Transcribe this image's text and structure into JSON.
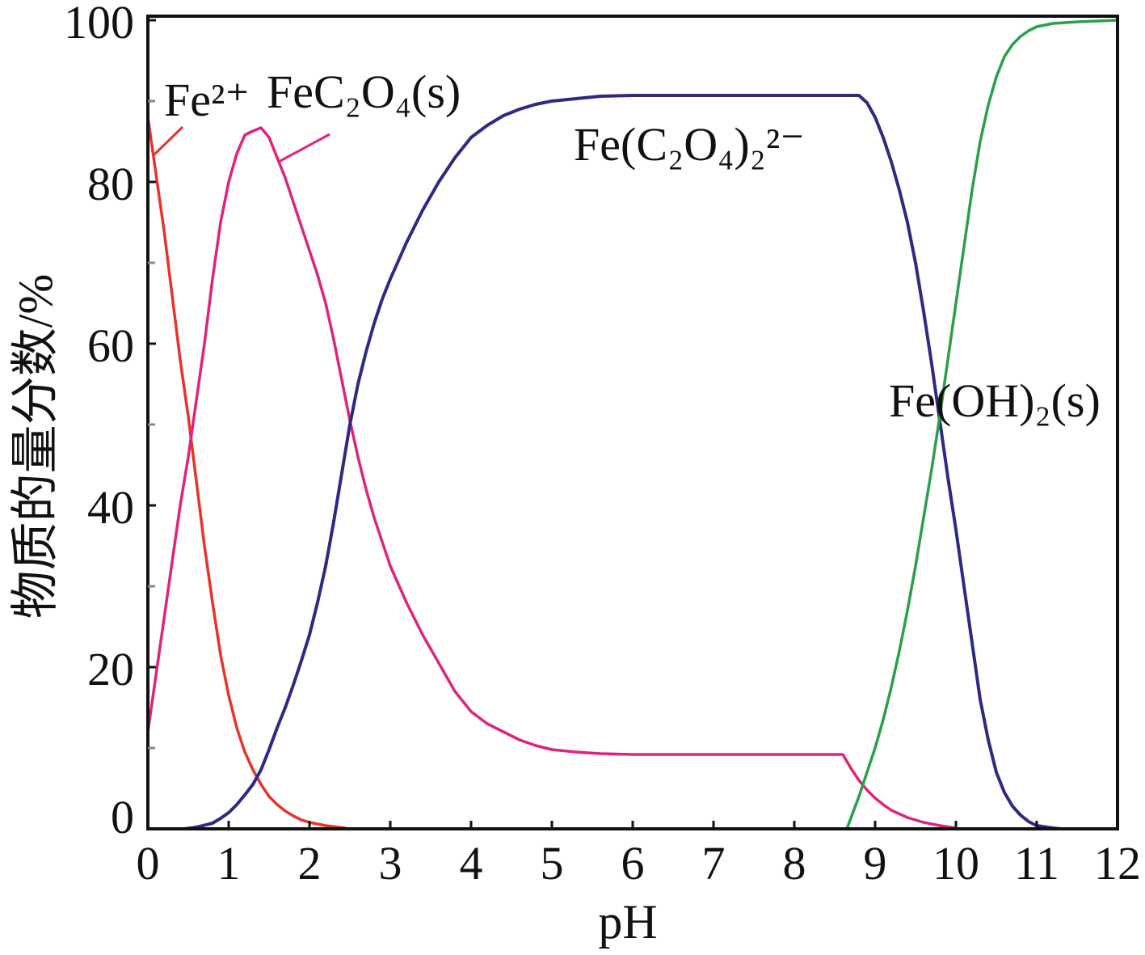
{
  "chart_data": {
    "type": "line",
    "title": "",
    "xlabel": "pH",
    "ylabel": "物质的量分数/%",
    "xlim": [
      0,
      12
    ],
    "ylim": [
      0,
      100
    ],
    "x_ticks": [
      0,
      1,
      2,
      3,
      4,
      5,
      6,
      7,
      8,
      9,
      10,
      11,
      12
    ],
    "y_ticks": [
      0,
      20,
      40,
      60,
      80,
      100
    ],
    "grid": false,
    "legend": "inline labels",
    "series": [
      {
        "name": "Fe²⁺",
        "color": "#e8332a",
        "points": [
          [
            0,
            88
          ],
          [
            0.1,
            81
          ],
          [
            0.2,
            74
          ],
          [
            0.3,
            66
          ],
          [
            0.4,
            58
          ],
          [
            0.5,
            51
          ],
          [
            0.6,
            43
          ],
          [
            0.7,
            35
          ],
          [
            0.8,
            28
          ],
          [
            0.9,
            21.5
          ],
          [
            1.0,
            16.5
          ],
          [
            1.1,
            12.5
          ],
          [
            1.2,
            9.5
          ],
          [
            1.3,
            7.3
          ],
          [
            1.4,
            5.5
          ],
          [
            1.5,
            4
          ],
          [
            1.6,
            3
          ],
          [
            1.7,
            2.2
          ],
          [
            1.8,
            1.6
          ],
          [
            1.9,
            1.1
          ],
          [
            2.0,
            0.8
          ],
          [
            2.2,
            0.4
          ],
          [
            2.4,
            0.15
          ],
          [
            2.5,
            0
          ]
        ]
      },
      {
        "name": "FeC₂O₄(s)",
        "color": "#e0237c",
        "points": [
          [
            0,
            12
          ],
          [
            0.1,
            19
          ],
          [
            0.2,
            26
          ],
          [
            0.3,
            33
          ],
          [
            0.4,
            40
          ],
          [
            0.5,
            46
          ],
          [
            0.6,
            53
          ],
          [
            0.7,
            60
          ],
          [
            0.8,
            68
          ],
          [
            0.9,
            75
          ],
          [
            1.0,
            80
          ],
          [
            1.1,
            83.5
          ],
          [
            1.2,
            85.8
          ],
          [
            1.3,
            86.3
          ],
          [
            1.4,
            86.7
          ],
          [
            1.5,
            85.5
          ],
          [
            1.6,
            83
          ],
          [
            1.7,
            80.5
          ],
          [
            1.8,
            77.5
          ],
          [
            1.9,
            74.5
          ],
          [
            2.0,
            71.5
          ],
          [
            2.1,
            68.5
          ],
          [
            2.2,
            65
          ],
          [
            2.3,
            60.5
          ],
          [
            2.4,
            55.5
          ],
          [
            2.5,
            50.5
          ],
          [
            2.6,
            46
          ],
          [
            2.7,
            42
          ],
          [
            2.8,
            38.5
          ],
          [
            2.9,
            35.5
          ],
          [
            3.0,
            32.5
          ],
          [
            3.2,
            28
          ],
          [
            3.4,
            24
          ],
          [
            3.6,
            20.5
          ],
          [
            3.8,
            17
          ],
          [
            4.0,
            14.5
          ],
          [
            4.2,
            13
          ],
          [
            4.4,
            12
          ],
          [
            4.6,
            11
          ],
          [
            4.8,
            10.3
          ],
          [
            5.0,
            9.8
          ],
          [
            5.3,
            9.5
          ],
          [
            5.6,
            9.3
          ],
          [
            6.0,
            9.2
          ],
          [
            7.0,
            9.2
          ],
          [
            8.0,
            9.2
          ],
          [
            8.6,
            9.2
          ],
          [
            8.7,
            7.5
          ],
          [
            8.8,
            6
          ],
          [
            8.9,
            4.8
          ],
          [
            9.0,
            3.8
          ],
          [
            9.1,
            3
          ],
          [
            9.2,
            2.3
          ],
          [
            9.4,
            1.4
          ],
          [
            9.6,
            0.8
          ],
          [
            9.8,
            0.4
          ],
          [
            10.0,
            0.1
          ]
        ]
      },
      {
        "name": "Fe(C₂O₄)₂²⁻",
        "color": "#2e2a84",
        "points": [
          [
            0.45,
            0
          ],
          [
            0.6,
            0.2
          ],
          [
            0.8,
            0.7
          ],
          [
            0.9,
            1.3
          ],
          [
            1.0,
            2
          ],
          [
            1.1,
            3
          ],
          [
            1.2,
            4.2
          ],
          [
            1.3,
            5.5
          ],
          [
            1.4,
            7.3
          ],
          [
            1.5,
            9.8
          ],
          [
            1.6,
            12.5
          ],
          [
            1.7,
            15
          ],
          [
            1.8,
            17.8
          ],
          [
            1.9,
            20.8
          ],
          [
            2.0,
            24
          ],
          [
            2.1,
            28
          ],
          [
            2.2,
            32.5
          ],
          [
            2.3,
            38
          ],
          [
            2.4,
            44
          ],
          [
            2.5,
            50
          ],
          [
            2.6,
            55
          ],
          [
            2.7,
            59
          ],
          [
            2.8,
            62.5
          ],
          [
            2.9,
            65.5
          ],
          [
            3.0,
            68
          ],
          [
            3.2,
            72.5
          ],
          [
            3.4,
            76.5
          ],
          [
            3.6,
            80
          ],
          [
            3.8,
            83
          ],
          [
            4.0,
            85.5
          ],
          [
            4.2,
            87
          ],
          [
            4.4,
            88.2
          ],
          [
            4.6,
            89
          ],
          [
            4.8,
            89.6
          ],
          [
            5.0,
            90
          ],
          [
            5.3,
            90.3
          ],
          [
            5.6,
            90.6
          ],
          [
            6.0,
            90.7
          ],
          [
            7.0,
            90.7
          ],
          [
            8.0,
            90.7
          ],
          [
            8.8,
            90.7
          ],
          [
            8.9,
            89.8
          ],
          [
            9.0,
            88
          ],
          [
            9.1,
            85.5
          ],
          [
            9.2,
            82.5
          ],
          [
            9.3,
            79
          ],
          [
            9.4,
            75
          ],
          [
            9.5,
            70
          ],
          [
            9.6,
            64
          ],
          [
            9.7,
            57.5
          ],
          [
            9.8,
            50.5
          ],
          [
            9.9,
            43.5
          ],
          [
            10.0,
            37
          ],
          [
            10.1,
            30
          ],
          [
            10.2,
            23
          ],
          [
            10.3,
            16
          ],
          [
            10.4,
            11
          ],
          [
            10.5,
            7
          ],
          [
            10.6,
            4.5
          ],
          [
            10.7,
            2.8
          ],
          [
            10.8,
            1.7
          ],
          [
            10.9,
            0.9
          ],
          [
            11.0,
            0.4
          ],
          [
            11.2,
            0.1
          ],
          [
            11.3,
            0
          ]
        ]
      },
      {
        "name": "Fe(OH)₂(s)",
        "color": "#2aa04a",
        "points": [
          [
            8.65,
            0
          ],
          [
            8.8,
            4
          ],
          [
            8.9,
            7
          ],
          [
            9.0,
            10
          ],
          [
            9.1,
            13.5
          ],
          [
            9.2,
            17.5
          ],
          [
            9.3,
            22
          ],
          [
            9.4,
            27
          ],
          [
            9.5,
            32.5
          ],
          [
            9.6,
            38.5
          ],
          [
            9.7,
            44.5
          ],
          [
            9.8,
            51
          ],
          [
            9.9,
            58
          ],
          [
            10.0,
            65
          ],
          [
            10.1,
            72
          ],
          [
            10.2,
            79
          ],
          [
            10.3,
            85
          ],
          [
            10.4,
            89.5
          ],
          [
            10.5,
            93
          ],
          [
            10.6,
            95.5
          ],
          [
            10.7,
            97
          ],
          [
            10.8,
            98
          ],
          [
            10.9,
            98.7
          ],
          [
            11.0,
            99.2
          ],
          [
            11.2,
            99.6
          ],
          [
            11.5,
            99.8
          ],
          [
            12.0,
            100
          ]
        ]
      }
    ]
  }
}
